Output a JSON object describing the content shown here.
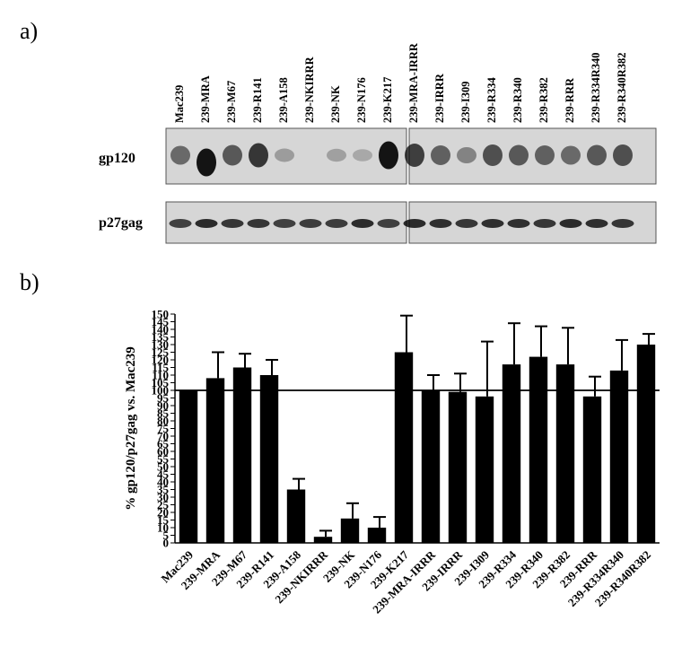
{
  "panel_a_label": "a)",
  "panel_b_label": "b)",
  "blot": {
    "lanes": [
      "Mac239",
      "239-MRA",
      "239-M67",
      "239-R141",
      "239-A158",
      "239-NKIRRR",
      "239-NK",
      "239-N176",
      "239-K217",
      "239-MRA-IRRR",
      "239-IRRR",
      "239-I309",
      "239-R334",
      "239-R340",
      "239-R382",
      "239-RRR",
      "239-R334R340",
      "239-R340R382"
    ],
    "gp120_label": "gp120",
    "p27_label": "p27gag",
    "gp120_intensity": [
      0.45,
      0.95,
      0.55,
      0.75,
      0.15,
      0.0,
      0.12,
      0.07,
      0.95,
      0.7,
      0.5,
      0.3,
      0.6,
      0.55,
      0.5,
      0.45,
      0.55,
      0.6
    ],
    "p27_intensity": [
      0.7,
      0.8,
      0.75,
      0.75,
      0.7,
      0.72,
      0.72,
      0.8,
      0.7,
      0.8,
      0.78,
      0.75,
      0.78,
      0.78,
      0.75,
      0.8,
      0.78,
      0.75
    ]
  },
  "chart_data": {
    "type": "bar",
    "categories": [
      "Mac239",
      "239-MRA",
      "239-M67",
      "239-R141",
      "239-A158",
      "239-NKIRRR",
      "239-NK",
      "239-N176",
      "239-K217",
      "239-MRA-IRRR",
      "239-IRRR",
      "239-I309",
      "239-R334",
      "239-R340",
      "239-R382",
      "239-RRR",
      "239-R334R340",
      "239-R340R382"
    ],
    "values": [
      100,
      108,
      115,
      110,
      35,
      4,
      16,
      10,
      125,
      100,
      99,
      96,
      117,
      122,
      117,
      96,
      113,
      130
    ],
    "errors": [
      0,
      17,
      9,
      10,
      7,
      4,
      10,
      7,
      24,
      10,
      12,
      36,
      27,
      20,
      24,
      13,
      20,
      7
    ],
    "ylabel": "% gp120/p27gag vs. Mac239",
    "xlabel": "",
    "ylim": [
      0,
      150
    ],
    "yticks": [
      0,
      5,
      10,
      15,
      20,
      25,
      30,
      35,
      40,
      45,
      50,
      55,
      60,
      65,
      70,
      75,
      80,
      85,
      90,
      95,
      100,
      105,
      110,
      115,
      120,
      125,
      130,
      135,
      140,
      145,
      150
    ],
    "reference_line": 100,
    "grid": false,
    "bar_color": "#000000"
  }
}
